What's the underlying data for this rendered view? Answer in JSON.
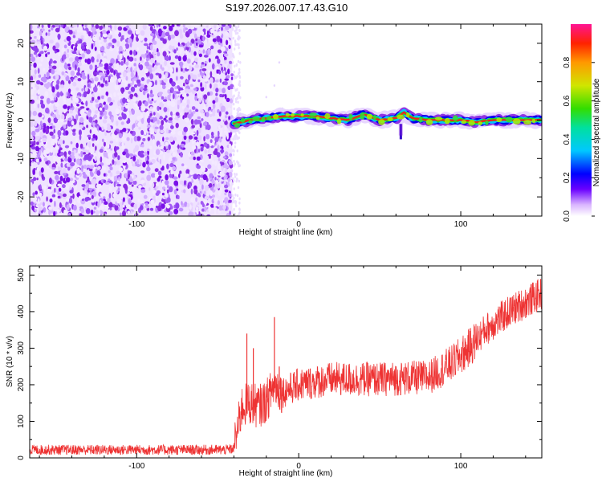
{
  "title": "S197.2026.007.17.43.G10",
  "chart_data": [
    {
      "type": "heatmap",
      "title": "S197.2026.007.17.43.G10",
      "xlabel": "Height of straight line (km)",
      "ylabel": "Frequency (Hz)",
      "xlim": [
        -166,
        150
      ],
      "ylim": [
        -25,
        25
      ],
      "x_ticks": [
        -100,
        0,
        100
      ],
      "y_ticks": [
        -20,
        -10,
        0,
        10,
        20
      ],
      "colorbar": {
        "label": "Normalized spectral amplitude",
        "range": [
          0,
          1
        ],
        "ticks": [
          0.0,
          0.2,
          0.4,
          0.6,
          0.8
        ],
        "tick_labels": [
          "0.0",
          "0.2",
          "0.4",
          "0.6",
          "0.8"
        ]
      },
      "noise_region_x": [
        -166,
        -41
      ],
      "signal_centerline": [
        {
          "x": -40,
          "y": -1
        },
        {
          "x": -30,
          "y": 0
        },
        {
          "x": -20,
          "y": 0.5
        },
        {
          "x": -10,
          "y": 1
        },
        {
          "x": 0,
          "y": 1
        },
        {
          "x": 10,
          "y": 1
        },
        {
          "x": 20,
          "y": 0.5
        },
        {
          "x": 30,
          "y": 0
        },
        {
          "x": 40,
          "y": 1.5
        },
        {
          "x": 50,
          "y": 0
        },
        {
          "x": 60,
          "y": 0.5
        },
        {
          "x": 65,
          "y": 2
        },
        {
          "x": 70,
          "y": 0.5
        },
        {
          "x": 80,
          "y": 0
        },
        {
          "x": 90,
          "y": 0
        },
        {
          "x": 100,
          "y": 0
        },
        {
          "x": 110,
          "y": -0.5
        },
        {
          "x": 120,
          "y": 0
        },
        {
          "x": 130,
          "y": 0
        },
        {
          "x": 150,
          "y": 0
        }
      ]
    },
    {
      "type": "line",
      "xlabel": "Height of straight line (km)",
      "ylabel": "SNR (10 * v/v)",
      "xlim": [
        -166,
        150
      ],
      "ylim": [
        0,
        525
      ],
      "x_ticks": [
        -100,
        0,
        100
      ],
      "y_ticks": [
        0,
        100,
        200,
        300,
        400,
        500
      ],
      "series_color": "#ee3333",
      "trend": [
        {
          "x": -166,
          "y": 22
        },
        {
          "x": -100,
          "y": 22
        },
        {
          "x": -45,
          "y": 22
        },
        {
          "x": -40,
          "y": 25
        },
        {
          "x": -35,
          "y": 140
        },
        {
          "x": -30,
          "y": 150
        },
        {
          "x": -25,
          "y": 140
        },
        {
          "x": -20,
          "y": 155
        },
        {
          "x": -15,
          "y": 200
        },
        {
          "x": -10,
          "y": 180
        },
        {
          "x": 0,
          "y": 200
        },
        {
          "x": 20,
          "y": 215
        },
        {
          "x": 50,
          "y": 215
        },
        {
          "x": 80,
          "y": 220
        },
        {
          "x": 95,
          "y": 260
        },
        {
          "x": 105,
          "y": 300
        },
        {
          "x": 115,
          "y": 350
        },
        {
          "x": 130,
          "y": 400
        },
        {
          "x": 150,
          "y": 450
        }
      ],
      "spikes": [
        {
          "x": -32,
          "y": 340
        },
        {
          "x": -28,
          "y": 300
        },
        {
          "x": -15,
          "y": 385
        },
        {
          "x": -12,
          "y": 250
        }
      ]
    }
  ],
  "colors": {
    "noise": "#8a2be2",
    "signal_red": "#ee2222"
  }
}
